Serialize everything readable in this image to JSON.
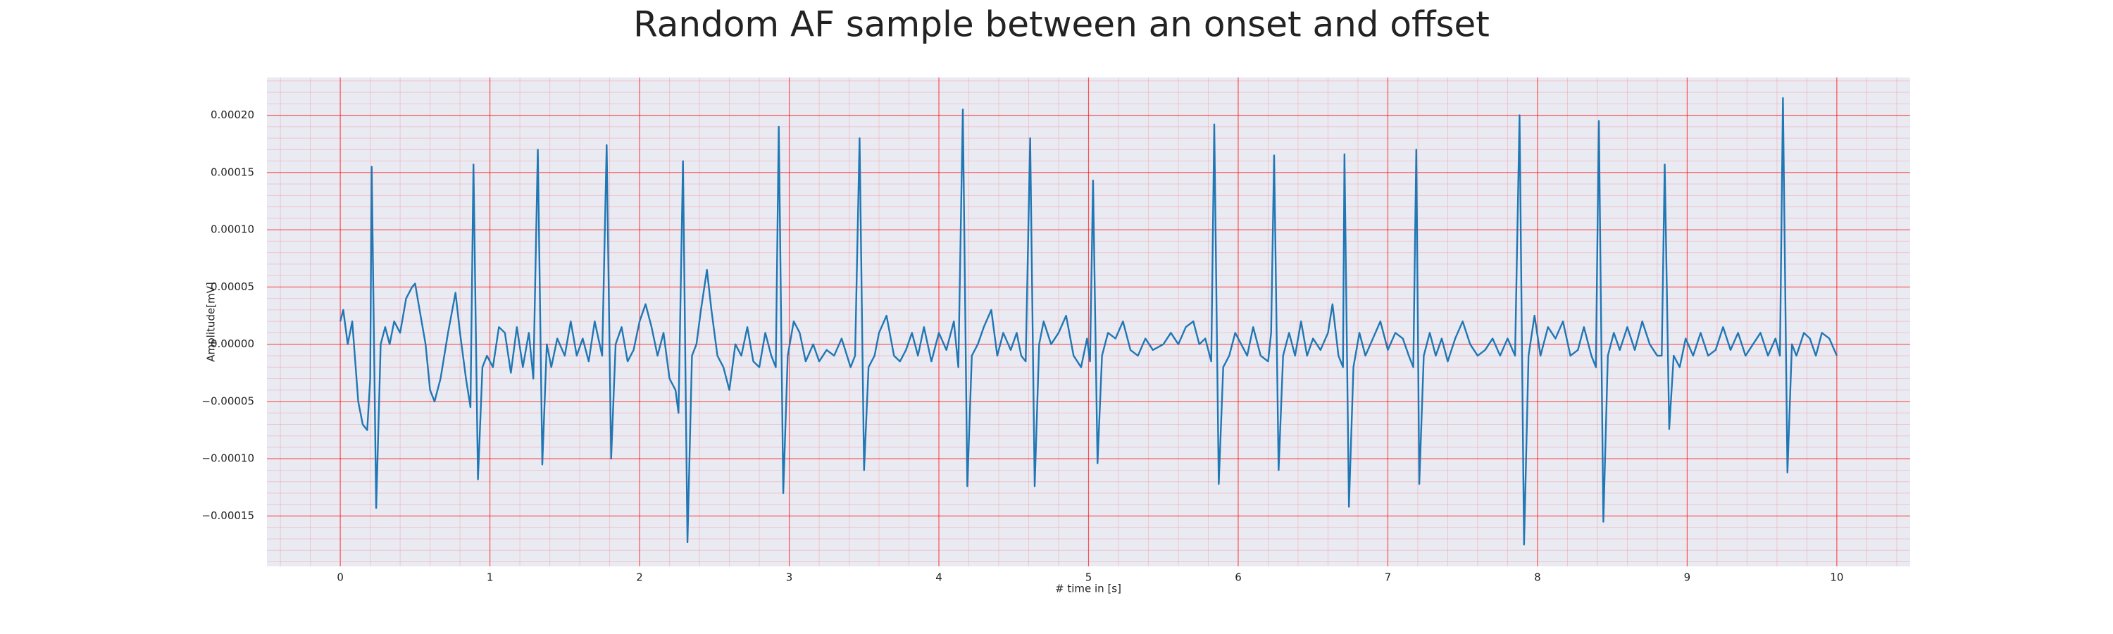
{
  "chart_data": {
    "type": "line",
    "title": "Random AF sample between an onset and offset",
    "x_label": "# time in [s]",
    "y_label": "Amplitude[mV]",
    "xlim": [
      -0.49,
      10.49
    ],
    "ylim": [
      -0.000194,
      0.000233
    ],
    "xticks": [
      0,
      1,
      2,
      3,
      4,
      5,
      6,
      7,
      8,
      9,
      10
    ],
    "yticks": [
      {
        "value": -0.00015,
        "label": "−0.00015"
      },
      {
        "value": -0.0001,
        "label": "−0.00010"
      },
      {
        "value": -5e-05,
        "label": "−0.00005"
      },
      {
        "value": 0,
        "label": "0.00000"
      },
      {
        "value": 5e-05,
        "label": "0.00005"
      },
      {
        "value": 0.0001,
        "label": "0.00010"
      },
      {
        "value": 0.00015,
        "label": "0.00015"
      },
      {
        "value": 0.0002,
        "label": "0.00020"
      }
    ],
    "grid": true,
    "minor_grid": true,
    "background": "#eaeaf2",
    "grid_color": "#ff0000",
    "x": [
      0,
      0.02,
      0.05,
      0.08,
      0.12,
      0.15,
      0.18,
      0.2,
      0.21,
      0.24,
      0.27,
      0.3,
      0.33,
      0.36,
      0.4,
      0.44,
      0.48,
      0.5,
      0.53,
      0.57,
      0.6,
      0.63,
      0.67,
      0.72,
      0.77,
      0.8,
      0.84,
      0.87,
      0.89,
      0.92,
      0.95,
      0.98,
      1.02,
      1.06,
      1.1,
      1.14,
      1.18,
      1.22,
      1.26,
      1.29,
      1.32,
      1.35,
      1.38,
      1.41,
      1.45,
      1.5,
      1.54,
      1.58,
      1.62,
      1.66,
      1.7,
      1.75,
      1.78,
      1.81,
      1.84,
      1.88,
      1.92,
      1.96,
      2.0,
      2.04,
      2.08,
      2.12,
      2.16,
      2.2,
      2.24,
      2.26,
      2.29,
      2.32,
      2.35,
      2.38,
      2.41,
      2.45,
      2.48,
      2.52,
      2.56,
      2.6,
      2.64,
      2.68,
      2.72,
      2.76,
      2.8,
      2.84,
      2.88,
      2.91,
      2.93,
      2.96,
      2.99,
      3.03,
      3.07,
      3.11,
      3.16,
      3.2,
      3.25,
      3.3,
      3.35,
      3.41,
      3.44,
      3.47,
      3.5,
      3.53,
      3.57,
      3.6,
      3.65,
      3.7,
      3.74,
      3.78,
      3.82,
      3.86,
      3.9,
      3.95,
      4.0,
      4.05,
      4.1,
      4.13,
      4.16,
      4.19,
      4.22,
      4.26,
      4.3,
      4.35,
      4.39,
      4.43,
      4.48,
      4.52,
      4.55,
      4.58,
      4.61,
      4.64,
      4.67,
      4.7,
      4.75,
      4.8,
      4.85,
      4.9,
      4.95,
      4.99,
      5.01,
      5.03,
      5.06,
      5.09,
      5.13,
      5.18,
      5.23,
      5.28,
      5.33,
      5.38,
      5.43,
      5.5,
      5.55,
      5.6,
      5.65,
      5.7,
      5.74,
      5.78,
      5.82,
      5.84,
      5.87,
      5.9,
      5.94,
      5.98,
      6.02,
      6.06,
      6.1,
      6.15,
      6.2,
      6.22,
      6.24,
      6.27,
      6.3,
      6.34,
      6.38,
      6.42,
      6.46,
      6.5,
      6.55,
      6.6,
      6.63,
      6.67,
      6.7,
      6.71,
      6.74,
      6.77,
      6.81,
      6.85,
      6.9,
      6.95,
      7.0,
      7.05,
      7.1,
      7.14,
      7.17,
      7.19,
      7.21,
      7.24,
      7.28,
      7.32,
      7.36,
      7.4,
      7.45,
      7.5,
      7.55,
      7.6,
      7.65,
      7.7,
      7.75,
      7.8,
      7.85,
      7.88,
      7.91,
      7.94,
      7.98,
      8.02,
      8.07,
      8.12,
      8.17,
      8.22,
      8.27,
      8.31,
      8.36,
      8.39,
      8.41,
      8.44,
      8.47,
      8.51,
      8.55,
      8.6,
      8.65,
      8.7,
      8.75,
      8.8,
      8.83,
      8.85,
      8.88,
      8.91,
      8.95,
      8.99,
      9.04,
      9.09,
      9.14,
      9.19,
      9.24,
      9.29,
      9.34,
      9.39,
      9.44,
      9.49,
      9.54,
      9.59,
      9.62,
      9.64,
      9.67,
      9.7,
      9.73,
      9.78,
      9.82,
      9.86,
      9.9,
      9.95,
      10.0
    ],
    "series": [
      {
        "color": "#1f77b4",
        "values": [
          2e-05,
          3e-05,
          0,
          2e-05,
          -5e-05,
          -7e-05,
          -7.5e-05,
          -3e-05,
          0.000155,
          -0.000143,
          0,
          1.5e-05,
          0,
          2e-05,
          1e-05,
          4e-05,
          5e-05,
          5.3e-05,
          3e-05,
          0,
          -4e-05,
          -5e-05,
          -3e-05,
          1e-05,
          4.5e-05,
          1e-05,
          -3e-05,
          -5.5e-05,
          0.000157,
          -0.000118,
          -2e-05,
          -1e-05,
          -2e-05,
          1.5e-05,
          1e-05,
          -2.5e-05,
          1.5e-05,
          -2e-05,
          1e-05,
          -3e-05,
          0.00017,
          -0.000105,
          0,
          -2e-05,
          5e-06,
          -1e-05,
          2e-05,
          -1e-05,
          5e-06,
          -1.5e-05,
          2e-05,
          -1e-05,
          0.000174,
          -0.0001,
          0,
          1.5e-05,
          -1.5e-05,
          -5e-06,
          2e-05,
          3.5e-05,
          1.5e-05,
          -1e-05,
          1e-05,
          -3e-05,
          -4e-05,
          -6e-05,
          0.00016,
          -0.000173,
          -1e-05,
          0,
          3e-05,
          6.5e-05,
          3e-05,
          -1e-05,
          -2e-05,
          -4e-05,
          0,
          -1e-05,
          1.5e-05,
          -1.5e-05,
          -2e-05,
          1e-05,
          -1e-05,
          -2e-05,
          0.00019,
          -0.00013,
          -1e-05,
          2e-05,
          1e-05,
          -1.5e-05,
          0,
          -1.5e-05,
          -5e-06,
          -1e-05,
          5e-06,
          -2e-05,
          -1e-05,
          0.00018,
          -0.00011,
          -2e-05,
          -1e-05,
          1e-05,
          2.5e-05,
          -1e-05,
          -1.5e-05,
          -5e-06,
          1e-05,
          -1e-05,
          1.5e-05,
          -1.5e-05,
          1e-05,
          -5e-06,
          2e-05,
          -2e-05,
          0.000205,
          -0.000124,
          -1e-05,
          0,
          1.5e-05,
          3e-05,
          -1e-05,
          1e-05,
          -5e-06,
          1e-05,
          -1e-05,
          -1.5e-05,
          0.00018,
          -0.000124,
          0,
          2e-05,
          0,
          1e-05,
          2.5e-05,
          -1e-05,
          -2e-05,
          5e-06,
          -1.5e-05,
          0.000143,
          -0.000104,
          -1e-05,
          1e-05,
          5e-06,
          2e-05,
          -5e-06,
          -1e-05,
          5e-06,
          -5e-06,
          0,
          1e-05,
          0,
          1.5e-05,
          2e-05,
          0,
          5e-06,
          -1.5e-05,
          0.000192,
          -0.000122,
          -2e-05,
          -1e-05,
          1e-05,
          0,
          -1e-05,
          1.5e-05,
          -1e-05,
          -1.5e-05,
          1e-05,
          0.000165,
          -0.00011,
          -1e-05,
          1e-05,
          -1e-05,
          2e-05,
          -1e-05,
          5e-06,
          -5e-06,
          1e-05,
          3.5e-05,
          -1e-05,
          -2e-05,
          0.000166,
          -0.000142,
          -2e-05,
          1e-05,
          -1e-05,
          5e-06,
          2e-05,
          -5e-06,
          1e-05,
          5e-06,
          -1e-05,
          -2e-05,
          0.00017,
          -0.000122,
          -1e-05,
          1e-05,
          -1e-05,
          5e-06,
          -1.5e-05,
          5e-06,
          2e-05,
          0,
          -1e-05,
          -5e-06,
          5e-06,
          -1e-05,
          5e-06,
          -1e-05,
          0.0002,
          -0.000175,
          -1e-05,
          2.5e-05,
          -1e-05,
          1.5e-05,
          5e-06,
          2e-05,
          -1e-05,
          -5e-06,
          1.5e-05,
          -1e-05,
          -2e-05,
          0.000195,
          -0.000155,
          -1e-05,
          1e-05,
          -5e-06,
          1.5e-05,
          -5e-06,
          2e-05,
          0,
          -1e-05,
          -1e-05,
          0.000157,
          -7.4e-05,
          -1e-05,
          -2e-05,
          5e-06,
          -1e-05,
          1e-05,
          -1e-05,
          -5e-06,
          1.5e-05,
          -5e-06,
          1e-05,
          -1e-05,
          0,
          1e-05,
          -1e-05,
          5e-06,
          -1e-05,
          0.000215,
          -0.000112,
          0,
          -1e-05,
          1e-05,
          5e-06,
          -1e-05,
          1e-05,
          5e-06,
          -1e-05
        ]
      }
    ]
  }
}
